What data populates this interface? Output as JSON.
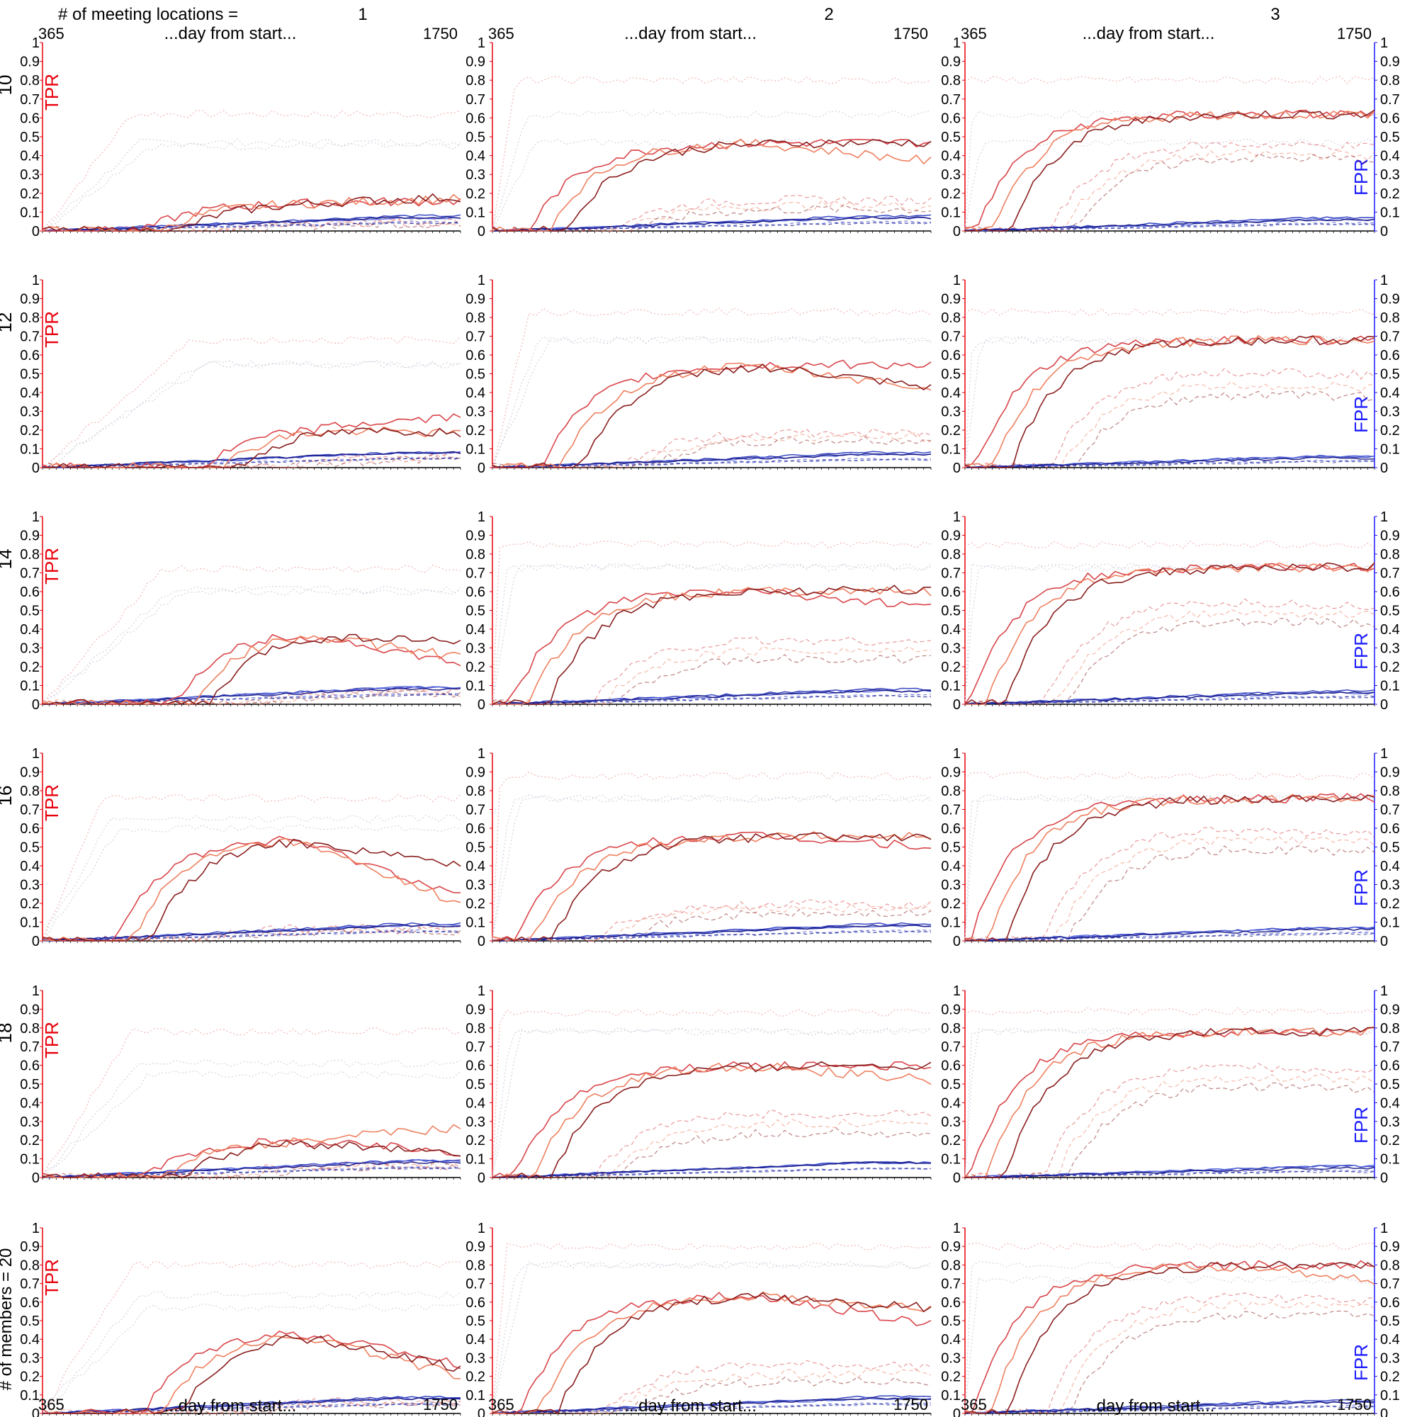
{
  "header": {
    "col_title": "# of meeting locations =",
    "row_title": "# of members = 20"
  },
  "axis": {
    "top_x_start": "365",
    "top_x_label": "...day from start...",
    "top_x_end": "1750",
    "bottom_x_start": "365",
    "bottom_x_label": "...day from start...",
    "bottom_x_end": "1750",
    "left_label": "TPR",
    "right_label": "FPR",
    "y_ticks": [
      "0",
      "0.1",
      "0.2",
      "0.3",
      "0.4",
      "0.5",
      "0.6",
      "0.7",
      "0.8",
      "0.9",
      "1"
    ]
  },
  "colors": {
    "tpr": "#e8000b",
    "fpr": "#1a1aff",
    "red_1": "#d9454a",
    "red_2": "#ee8060",
    "red_3": "#8a1f1f",
    "blue_1": "#2233bb",
    "blue_2": "#5566dd",
    "blue_3": "#101080",
    "axis": "#000000"
  },
  "chart_data": {
    "type": "line",
    "layout": "grid 6 rows (members) x 3 columns (meeting locations)",
    "columns": [
      "1",
      "2",
      "3"
    ],
    "rows": [
      "10",
      "12",
      "14",
      "16",
      "18",
      "20"
    ],
    "xlim": [
      365,
      1750
    ],
    "ylim": [
      0,
      1
    ],
    "grid": false,
    "panels": [
      {
        "row": "10",
        "col": "1",
        "tpr": [
          [
            0.16,
            0.17,
            0.18
          ],
          [
            0.0,
            0.0,
            0.0
          ]
        ],
        "fpr_level": [
          0.08,
          0.07,
          0.07
        ],
        "tpr_plateau": 0.15,
        "tpr_start_day": 700,
        "dotted_upper": [
          0.62,
          0.47,
          0.45
        ],
        "dashed_tpr": [
          0.05,
          0.05,
          0.04
        ]
      },
      {
        "row": "10",
        "col": "2",
        "tpr": [
          [
            0.47,
            0.37,
            0.47
          ],
          [
            0.0,
            0.0,
            0.0
          ]
        ],
        "fpr_level": [
          0.08,
          0.07,
          0.07
        ],
        "tpr_plateau": 0.47,
        "tpr_start_day": 480,
        "dotted_upper": [
          0.8,
          0.62,
          0.47
        ],
        "dashed_tpr": [
          0.17,
          0.14,
          0.12
        ]
      },
      {
        "row": "10",
        "col": "3",
        "tpr": [
          [
            0.62,
            0.62,
            0.62
          ],
          [
            0.0,
            0.0,
            0.0
          ]
        ],
        "fpr_level": [
          0.07,
          0.06,
          0.06
        ],
        "tpr_plateau": 0.62,
        "tpr_start_day": 400,
        "dotted_upper": [
          0.8,
          0.62,
          0.47
        ],
        "dashed_tpr": [
          0.47,
          0.42,
          0.4
        ]
      },
      {
        "row": "12",
        "col": "1",
        "tpr": [
          [
            0.27,
            0.18,
            0.19
          ],
          [
            0.0,
            0.0,
            0.0
          ]
        ],
        "fpr_level": [
          0.08,
          0.08,
          0.08
        ],
        "tpr_plateau": 0.22,
        "tpr_start_day": 900,
        "dotted_upper": [
          0.68,
          0.55,
          0.55
        ],
        "dashed_tpr": [
          0.06,
          0.06,
          0.05
        ]
      },
      {
        "row": "12",
        "col": "2",
        "tpr": [
          [
            0.55,
            0.42,
            0.42
          ],
          [
            0.0,
            0.0,
            0.0
          ]
        ],
        "fpr_level": [
          0.08,
          0.07,
          0.07
        ],
        "tpr_plateau": 0.55,
        "tpr_start_day": 520,
        "dotted_upper": [
          0.83,
          0.68,
          0.68
        ],
        "dashed_tpr": [
          0.19,
          0.17,
          0.15
        ]
      },
      {
        "row": "12",
        "col": "3",
        "tpr": [
          [
            0.68,
            0.68,
            0.68
          ],
          [
            0.0,
            0.0,
            0.0
          ]
        ],
        "fpr_level": [
          0.06,
          0.06,
          0.05
        ],
        "tpr_plateau": 0.68,
        "tpr_start_day": 400,
        "dotted_upper": [
          0.83,
          0.68,
          0.68
        ],
        "dashed_tpr": [
          0.52,
          0.45,
          0.4
        ]
      },
      {
        "row": "14",
        "col": "1",
        "tpr": [
          [
            0.21,
            0.25,
            0.33
          ],
          [
            0.0,
            0.0,
            0.0
          ]
        ],
        "fpr_level": [
          0.09,
          0.09,
          0.08
        ],
        "tpr_plateau": 0.4,
        "tpr_start_day": 800,
        "dotted_upper": [
          0.72,
          0.61,
          0.6
        ],
        "dashed_tpr": [
          0.07,
          0.07,
          0.06
        ]
      },
      {
        "row": "14",
        "col": "2",
        "tpr": [
          [
            0.51,
            0.6,
            0.61
          ],
          [
            0.0,
            0.0,
            0.0
          ]
        ],
        "fpr_level": [
          0.08,
          0.07,
          0.07
        ],
        "tpr_plateau": 0.61,
        "tpr_start_day": 420,
        "dotted_upper": [
          0.85,
          0.73,
          0.73
        ],
        "dashed_tpr": [
          0.35,
          0.3,
          0.25
        ]
      },
      {
        "row": "14",
        "col": "3",
        "tpr": [
          [
            0.73,
            0.73,
            0.73
          ],
          [
            0.0,
            0.0,
            0.0
          ]
        ],
        "fpr_level": [
          0.07,
          0.06,
          0.06
        ],
        "tpr_plateau": 0.73,
        "tpr_start_day": 380,
        "dotted_upper": [
          0.85,
          0.73,
          0.73
        ],
        "dashed_tpr": [
          0.55,
          0.5,
          0.45
        ]
      },
      {
        "row": "16",
        "col": "1",
        "tpr": [
          [
            0.24,
            0.2,
            0.4
          ],
          [
            0.0,
            0.0,
            0.0
          ]
        ],
        "fpr_level": [
          0.09,
          0.08,
          0.08
        ],
        "tpr_plateau": 0.55,
        "tpr_start_day": 600,
        "dotted_upper": [
          0.76,
          0.65,
          0.6
        ],
        "dashed_tpr": [
          0.07,
          0.06,
          0.06
        ]
      },
      {
        "row": "16",
        "col": "2",
        "tpr": [
          [
            0.5,
            0.56,
            0.55
          ],
          [
            0.0,
            0.0,
            0.0
          ]
        ],
        "fpr_level": [
          0.09,
          0.08,
          0.08
        ],
        "tpr_plateau": 0.56,
        "tpr_start_day": 430,
        "dotted_upper": [
          0.88,
          0.76,
          0.76
        ],
        "dashed_tpr": [
          0.2,
          0.18,
          0.15
        ]
      },
      {
        "row": "16",
        "col": "3",
        "tpr": [
          [
            0.76,
            0.76,
            0.76
          ],
          [
            0.0,
            0.0,
            0.0
          ]
        ],
        "fpr_level": [
          0.07,
          0.07,
          0.06
        ],
        "tpr_plateau": 0.76,
        "tpr_start_day": 380,
        "dotted_upper": [
          0.88,
          0.76,
          0.76
        ],
        "dashed_tpr": [
          0.6,
          0.55,
          0.5
        ]
      },
      {
        "row": "18",
        "col": "1",
        "tpr": [
          [
            0.14,
            0.27,
            0.12
          ],
          [
            0.0,
            0.0,
            0.0
          ]
        ],
        "fpr_level": [
          0.09,
          0.09,
          0.08
        ],
        "tpr_plateau": 0.2,
        "tpr_start_day": 700,
        "dotted_upper": [
          0.78,
          0.61,
          0.55
        ],
        "dashed_tpr": [
          0.07,
          0.07,
          0.06
        ]
      },
      {
        "row": "18",
        "col": "2",
        "tpr": [
          [
            0.6,
            0.52,
            0.6
          ],
          [
            0.0,
            0.0,
            0.0
          ]
        ],
        "fpr_level": [
          0.08,
          0.08,
          0.08
        ],
        "tpr_plateau": 0.6,
        "tpr_start_day": 430,
        "dotted_upper": [
          0.88,
          0.78,
          0.78
        ],
        "dashed_tpr": [
          0.35,
          0.3,
          0.25
        ]
      },
      {
        "row": "18",
        "col": "3",
        "tpr": [
          [
            0.78,
            0.78,
            0.78
          ],
          [
            0.0,
            0.0,
            0.0
          ]
        ],
        "fpr_level": [
          0.06,
          0.06,
          0.05
        ],
        "tpr_plateau": 0.78,
        "tpr_start_day": 380,
        "dotted_upper": [
          0.89,
          0.78,
          0.78
        ],
        "dashed_tpr": [
          0.6,
          0.55,
          0.5
        ]
      },
      {
        "row": "20",
        "col": "1",
        "tpr": [
          [
            0.26,
            0.2,
            0.24
          ],
          [
            0.0,
            0.0,
            0.0
          ]
        ],
        "fpr_level": [
          0.09,
          0.08,
          0.08
        ],
        "tpr_plateau": 0.45,
        "tpr_start_day": 700,
        "dotted_upper": [
          0.8,
          0.64,
          0.57
        ],
        "dashed_tpr": [
          0.07,
          0.06,
          0.06
        ]
      },
      {
        "row": "20",
        "col": "2",
        "tpr": [
          [
            0.48,
            0.56,
            0.57
          ],
          [
            0.0,
            0.0,
            0.0
          ]
        ],
        "fpr_level": [
          0.09,
          0.08,
          0.08
        ],
        "tpr_plateau": 0.64,
        "tpr_start_day": 450,
        "dotted_upper": [
          0.9,
          0.8,
          0.8
        ],
        "dashed_tpr": [
          0.27,
          0.22,
          0.18
        ]
      },
      {
        "row": "20",
        "col": "3",
        "tpr": [
          [
            0.8,
            0.72,
            0.8
          ],
          [
            0.0,
            0.0,
            0.0
          ]
        ],
        "fpr_level": [
          0.07,
          0.06,
          0.06
        ],
        "tpr_plateau": 0.8,
        "tpr_start_day": 390,
        "dotted_upper": [
          0.9,
          0.8,
          0.72
        ],
        "dashed_tpr": [
          0.64,
          0.6,
          0.55
        ]
      }
    ]
  }
}
